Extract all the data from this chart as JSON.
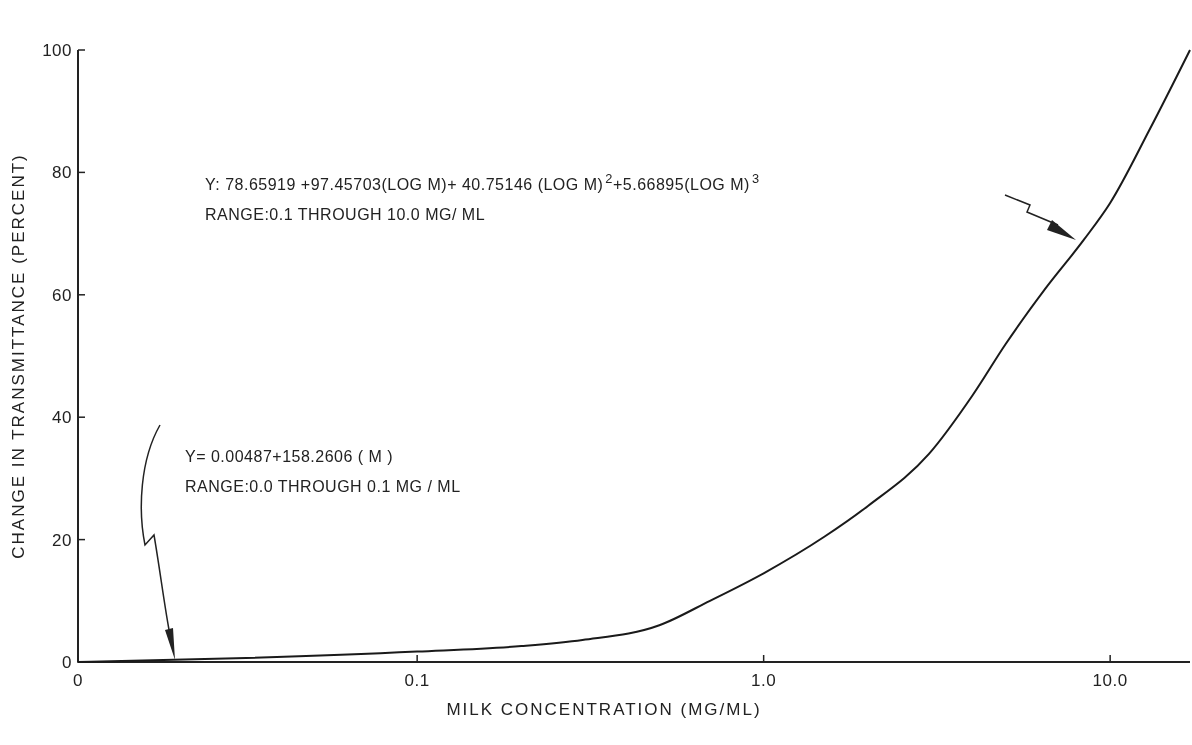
{
  "chart_data": {
    "type": "line",
    "xlabel": "MILK CONCENTRATION (MG/ML)",
    "ylabel": "CHANGE IN TRANSMITTANCE (PERCENT)",
    "log": "x",
    "xlim": [
      0.0105,
      17
    ],
    "xticks": [
      {
        "value": 0.0105,
        "label": "0"
      },
      0.1,
      {
        "value": 1,
        "label": "1.0"
      },
      {
        "value": 10,
        "label": "10.0"
      }
    ],
    "ylim": [
      0,
      100
    ],
    "yticks": [
      0,
      20,
      40,
      60,
      80,
      100
    ],
    "marker": "none",
    "line_style": "solid",
    "x": [
      0.0105,
      0.03,
      0.1,
      0.2,
      0.3,
      0.5,
      0.7,
      1,
      1.5,
      2,
      3,
      4,
      5,
      6.5,
      8.4,
      10,
      13,
      17
    ],
    "series": [
      {
        "color": "#1a1a1a",
        "values": [
          0,
          0.6,
          1.7,
          2.6,
          3.6,
          6,
          10,
          14.5,
          20.5,
          25.5,
          34,
          43.5,
          52,
          61,
          69,
          75,
          87,
          100
        ]
      }
    ],
    "annotations": [
      "Y: 78.65919 +97.45703(LOG M)+ 40.75146 (LOG M)$^{2}$+5.66895(LOG M)$^{3}$",
      "RANGE:0.1 THROUGH 10.0 MG/ ML",
      "Y= 0.00487+158.2606 ( M )",
      "RANGE:0.0 THROUGH 0.1 MG / ML"
    ]
  }
}
